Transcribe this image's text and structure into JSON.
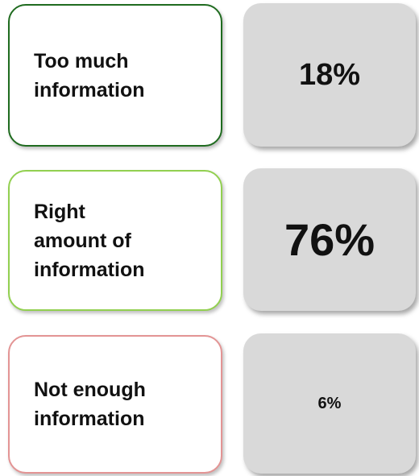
{
  "rows": [
    {
      "label": [
        "Too much",
        "information"
      ],
      "value": "18%"
    },
    {
      "label": [
        "Right",
        "amount of",
        "information"
      ],
      "value": "76%"
    },
    {
      "label": [
        "Not enough",
        "information"
      ],
      "value": "6%"
    }
  ]
}
